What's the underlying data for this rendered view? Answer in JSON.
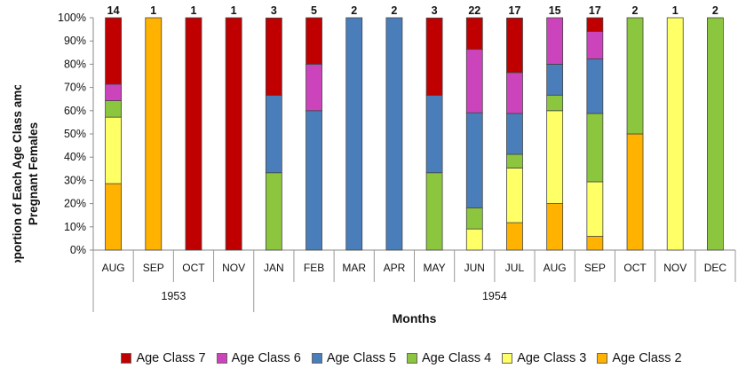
{
  "chart_data": {
    "type": "bar",
    "stacked": true,
    "ylabel": "Proportion of Each Age Class among Pregnant Females",
    "xlabel": "Months",
    "ylim": [
      0,
      100
    ],
    "y_ticks": [
      "0%",
      "10%",
      "20%",
      "30%",
      "40%",
      "50%",
      "60%",
      "70%",
      "80%",
      "90%",
      "100%"
    ],
    "categories": [
      "AUG",
      "SEP",
      "OCT",
      "NOV",
      "JAN",
      "FEB",
      "MAR",
      "APR",
      "MAY",
      "JUN",
      "JUL",
      "AUG",
      "SEP",
      "OCT",
      "NOV",
      "DEC"
    ],
    "year_groups": [
      {
        "label": "1953",
        "count": 4
      },
      {
        "label": "1954",
        "count": 12
      }
    ],
    "sample_sizes": [
      "14",
      "1",
      "1",
      "1",
      "3",
      "5",
      "2",
      "2",
      "3",
      "22",
      "17",
      "15",
      "17",
      "2",
      "1",
      "2"
    ],
    "series": [
      {
        "name": "Age Class 2",
        "color": "#FFB300",
        "values": [
          28.6,
          100,
          0,
          0,
          0,
          0,
          0,
          0,
          0,
          0,
          11.8,
          20,
          5.9,
          50,
          0,
          0
        ]
      },
      {
        "name": "Age Class 3",
        "color": "#FFFF66",
        "values": [
          28.6,
          0,
          0,
          0,
          0,
          0,
          0,
          0,
          0,
          9.1,
          23.5,
          40,
          23.5,
          0,
          100,
          0
        ]
      },
      {
        "name": "Age Class 4",
        "color": "#8CC63F",
        "values": [
          7.1,
          0,
          0,
          0,
          33.3,
          0,
          0,
          0,
          33.3,
          9.1,
          5.9,
          6.7,
          29.4,
          50,
          0,
          100
        ]
      },
      {
        "name": "Age Class 5",
        "color": "#4A7EBB",
        "values": [
          0,
          0,
          0,
          0,
          33.3,
          60,
          100,
          100,
          33.3,
          40.9,
          17.6,
          13.3,
          23.5,
          0,
          0,
          0
        ]
      },
      {
        "name": "Age Class 6",
        "color": "#CC44BB",
        "values": [
          7.1,
          0,
          0,
          0,
          0,
          20,
          0,
          0,
          0,
          27.3,
          17.6,
          20,
          11.8,
          0,
          0,
          0
        ]
      },
      {
        "name": "Age Class 7",
        "color": "#C00000",
        "values": [
          28.6,
          0,
          100,
          100,
          33.3,
          20,
          0,
          0,
          33.3,
          13.6,
          23.5,
          0,
          5.9,
          0,
          0,
          0
        ]
      }
    ],
    "legend_order": [
      "Age Class 7",
      "Age Class 6",
      "Age Class 5",
      "Age Class 4",
      "Age Class 3",
      "Age Class 2"
    ],
    "legend_position": "bottom",
    "grid": false
  }
}
